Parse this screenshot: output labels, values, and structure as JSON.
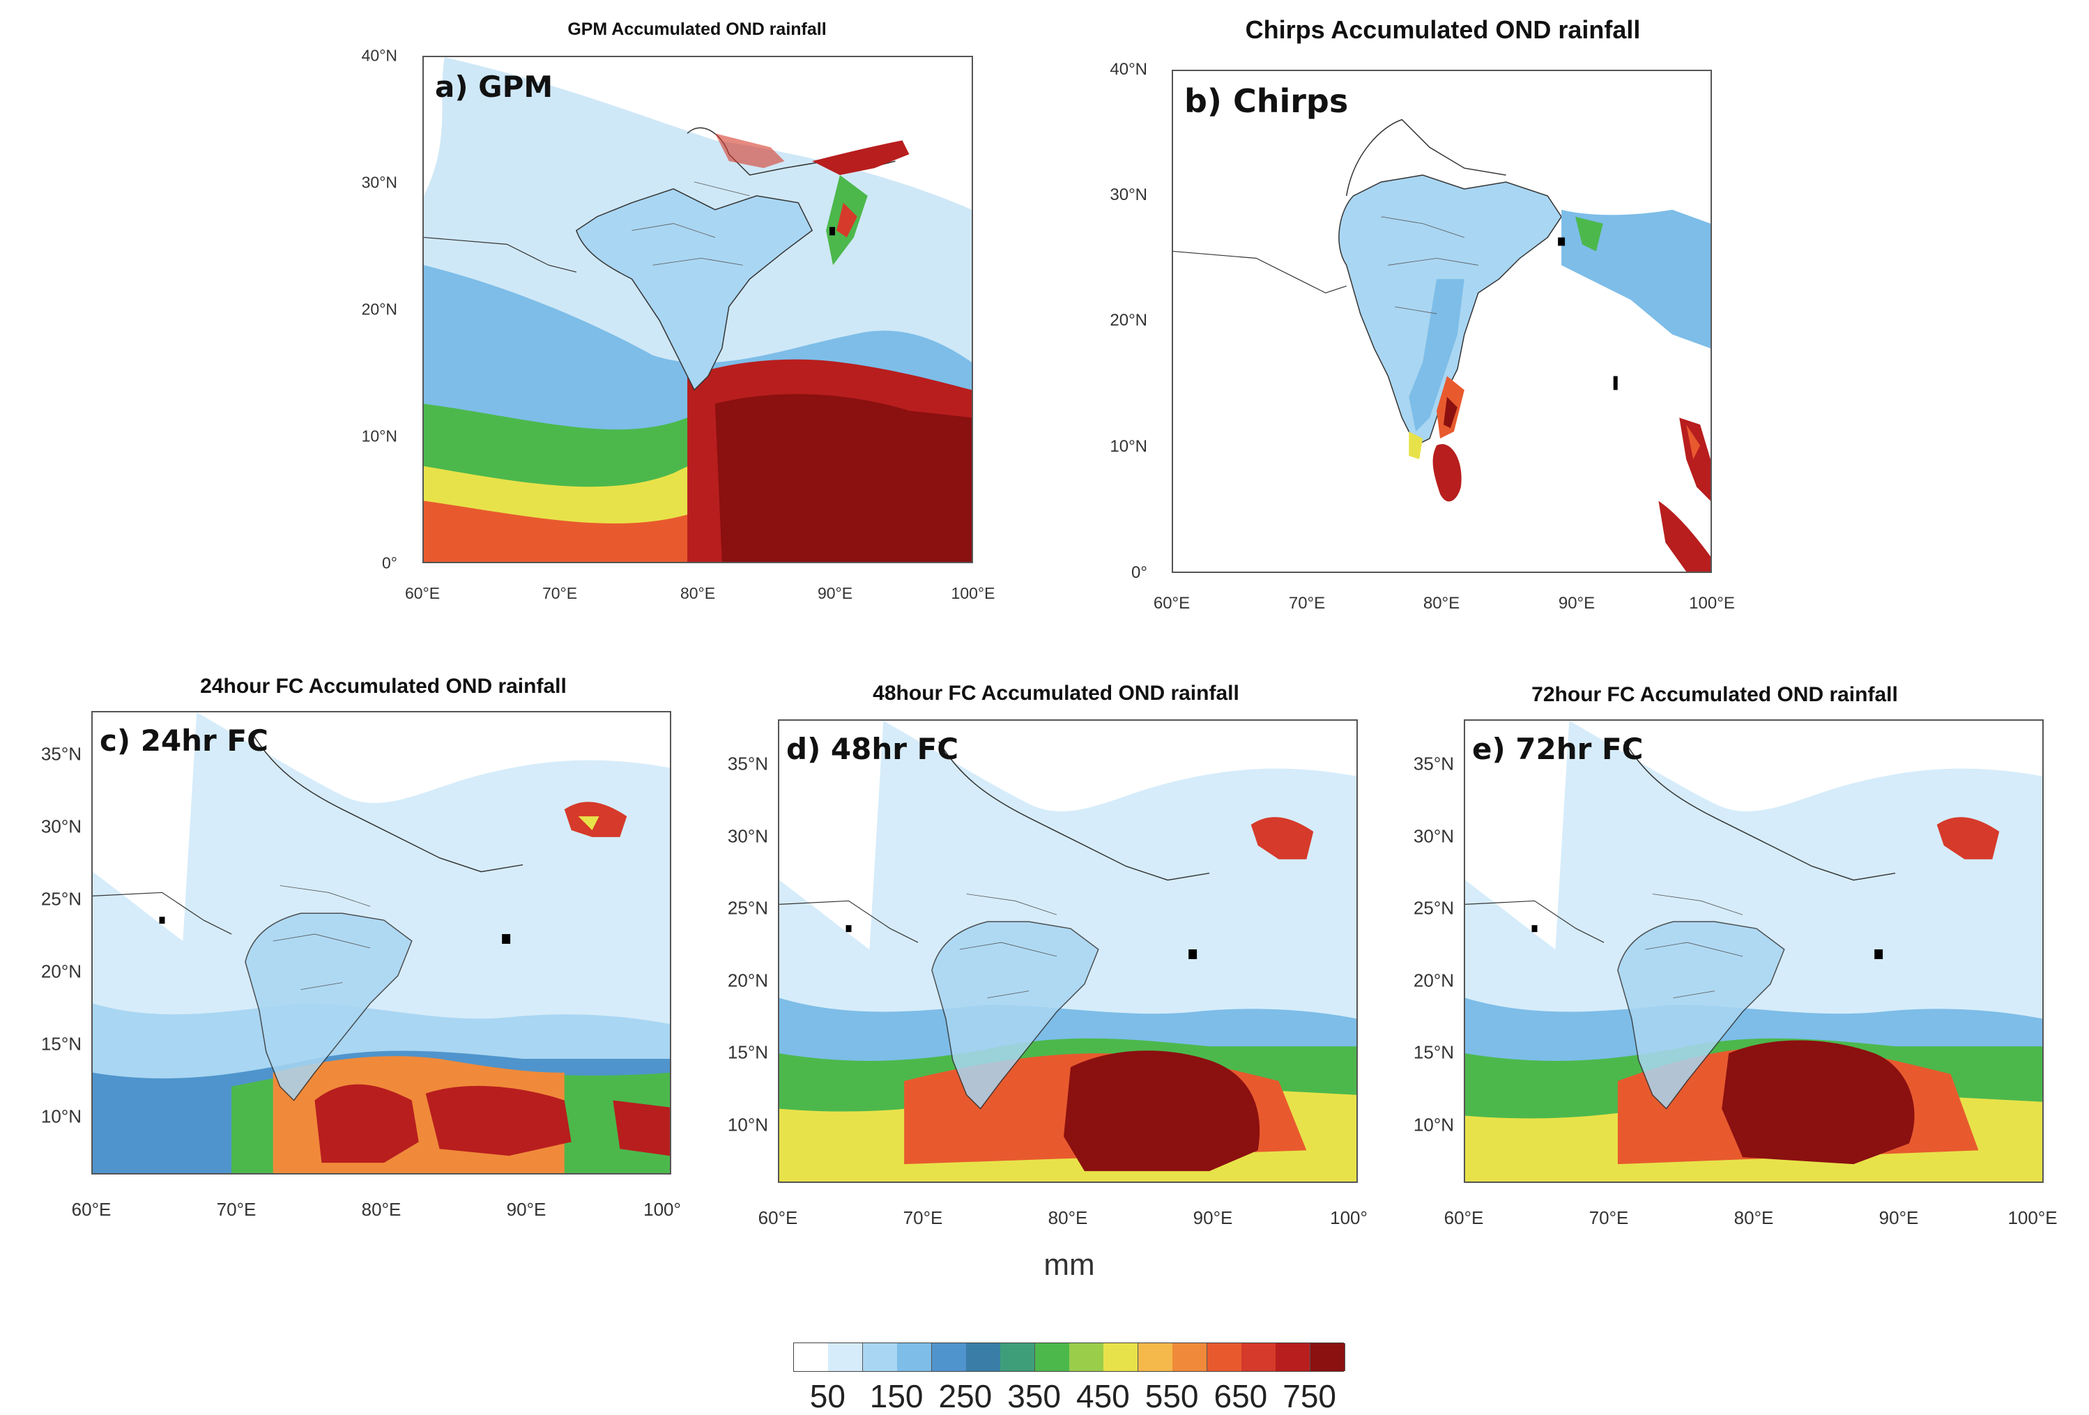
{
  "panels": [
    {
      "title": "GPM Accumulated OND rainfall",
      "label": "a) GPM",
      "y_ticks": [
        "40°N",
        "30°N",
        "20°N",
        "10°N",
        "0°"
      ],
      "x_ticks": [
        "60°E",
        "70°E",
        "80°E",
        "90°E",
        "100°E"
      ]
    },
    {
      "title": "Chirps Accumulated OND rainfall",
      "label": "b) Chirps",
      "y_ticks": [
        "40°N",
        "30°N",
        "20°N",
        "10°N",
        "0°"
      ],
      "x_ticks": [
        "60°E",
        "70°E",
        "80°E",
        "90°E",
        "100°E"
      ]
    },
    {
      "title": "24hour FC Accumulated OND rainfall",
      "label": "c) 24hr FC",
      "y_ticks": [
        "35°N",
        "30°N",
        "25°N",
        "20°N",
        "15°N",
        "10°N"
      ],
      "x_ticks": [
        "60°E",
        "70°E",
        "80°E",
        "90°E",
        "100°"
      ]
    },
    {
      "title": "48hour FC Accumulated OND rainfall",
      "label": "d) 48hr FC",
      "y_ticks": [
        "35°N",
        "30°N",
        "25°N",
        "20°N",
        "15°N",
        "10°N"
      ],
      "x_ticks": [
        "60°E",
        "70°E",
        "80°E",
        "90°E",
        "100°"
      ]
    },
    {
      "title": "72hour FC Accumulated OND rainfall",
      "label": "e) 72hr FC",
      "y_ticks": [
        "35°N",
        "30°N",
        "25°N",
        "20°N",
        "15°N",
        "10°N"
      ],
      "x_ticks": [
        "60°E",
        "70°E",
        "80°E",
        "90°E",
        "100°E"
      ]
    }
  ],
  "colorbar": {
    "unit": "mm",
    "colors": [
      "#ffffff",
      "#d6ecfa",
      "#a9d6f2",
      "#7dbde8",
      "#4f94cc",
      "#3a7ea8",
      "#3f9e7a",
      "#4cb84c",
      "#9acd4a",
      "#e8e24a",
      "#f5b84a",
      "#f08a3a",
      "#e85a2e",
      "#d63a2a",
      "#b81e1e",
      "#8b1010"
    ],
    "labels": [
      "50",
      "150",
      "250",
      "350",
      "450",
      "550",
      "650",
      "750"
    ]
  },
  "chart_data": {
    "type": "heatmap",
    "variable": "Accumulated OND rainfall",
    "unit": "mm",
    "levels": [
      50,
      150,
      250,
      350,
      450,
      550,
      650,
      750
    ],
    "datasets": [
      "GPM",
      "Chirps",
      "24hour FC",
      "48hour FC",
      "72hour FC"
    ],
    "axis_ranges": {
      "GPM": {
        "lon": [
          60,
          100
        ],
        "lat": [
          0,
          40
        ]
      },
      "Chirps": {
        "lon": [
          60,
          100
        ],
        "lat": [
          0,
          40
        ]
      },
      "24hour FC": {
        "lon": [
          60,
          100
        ],
        "lat": [
          6,
          38
        ]
      },
      "48hour FC": {
        "lon": [
          60,
          100
        ],
        "lat": [
          6,
          38
        ]
      },
      "72hour FC": {
        "lon": [
          60,
          100
        ],
        "lat": [
          6,
          38
        ]
      }
    }
  }
}
